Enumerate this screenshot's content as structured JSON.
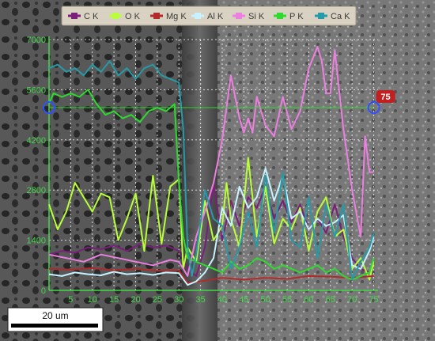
{
  "chart_data": {
    "type": "line",
    "title": "",
    "xlabel": "",
    "ylabel": "",
    "xlim": [
      0,
      76
    ],
    "ylim": [
      0,
      7000
    ],
    "x_ticks": [
      "5",
      "10",
      "15",
      "20",
      "25",
      "30",
      "35",
      "40",
      "45",
      "50",
      "55",
      "60",
      "65",
      "70",
      "75"
    ],
    "y_ticks": [
      "0",
      "1400",
      "2800",
      "4200",
      "5600",
      "7000"
    ],
    "grid": true,
    "legend_position": "top",
    "cursor": {
      "x": 75,
      "y": 5100,
      "label": "75"
    },
    "scale_bar_label": "20 um",
    "series": [
      {
        "name": "C K",
        "color": "#7a1f7a",
        "x": [
          0,
          3,
          6,
          9,
          12,
          15,
          18,
          21,
          24,
          27,
          30,
          32,
          34,
          36,
          38,
          40,
          42,
          44,
          46,
          48,
          50,
          52,
          54,
          56,
          58,
          60,
          62,
          64,
          66,
          68,
          70,
          72,
          74,
          75
        ],
        "y": [
          1000,
          1100,
          1050,
          1200,
          1150,
          1250,
          1100,
          1300,
          1200,
          1250,
          1100,
          600,
          400,
          1200,
          3000,
          1400,
          2500,
          1800,
          2600,
          2300,
          2900,
          2000,
          2500,
          1900,
          2400,
          1700,
          2000,
          1600,
          2400,
          1500,
          900,
          600,
          500,
          800
        ]
      },
      {
        "name": "O K",
        "color": "#b8ff3a",
        "x": [
          0,
          2,
          4,
          6,
          8,
          10,
          12,
          14,
          16,
          18,
          20,
          22,
          24,
          26,
          28,
          30,
          31,
          32,
          34,
          36,
          38,
          40,
          41,
          42,
          44,
          46,
          48,
          50,
          52,
          54,
          56,
          58,
          60,
          62,
          64,
          66,
          68,
          70,
          72,
          74,
          75
        ],
        "y": [
          2400,
          1700,
          2200,
          3000,
          2600,
          2200,
          2700,
          2600,
          1400,
          2000,
          2700,
          1100,
          3200,
          1300,
          2900,
          3100,
          600,
          1200,
          800,
          2500,
          1400,
          1800,
          3000,
          2000,
          1200,
          3700,
          1500,
          2900,
          1300,
          2000,
          1700,
          2300,
          1100,
          2200,
          2600,
          1500,
          1700,
          600,
          900,
          300,
          800
        ]
      },
      {
        "name": "Mg K",
        "color": "#b22a2a",
        "x": [
          0,
          5,
          10,
          15,
          20,
          25,
          30,
          32,
          35,
          40,
          45,
          50,
          55,
          60,
          65,
          70,
          75
        ],
        "y": [
          600,
          580,
          620,
          560,
          600,
          550,
          560,
          200,
          250,
          350,
          300,
          350,
          320,
          400,
          380,
          350,
          400
        ]
      },
      {
        "name": "Al K",
        "color": "#c8f2ff",
        "x": [
          0,
          3,
          6,
          9,
          12,
          15,
          18,
          21,
          24,
          27,
          30,
          32,
          34,
          36,
          38,
          40,
          42,
          44,
          46,
          48,
          50,
          52,
          54,
          56,
          58,
          60,
          62,
          64,
          66,
          68,
          70,
          72,
          74,
          75
        ],
        "y": [
          450,
          400,
          500,
          450,
          420,
          520,
          450,
          480,
          430,
          500,
          480,
          150,
          250,
          500,
          900,
          2300,
          1800,
          2900,
          2300,
          2600,
          3400,
          2500,
          3200,
          2000,
          2200,
          1700,
          2000,
          1800,
          1900,
          2100,
          700,
          600,
          1100,
          1500
        ]
      },
      {
        "name": "Si K",
        "color": "#ec7fe0",
        "x": [
          0,
          4,
          8,
          12,
          16,
          20,
          24,
          28,
          30,
          32,
          34,
          36,
          38,
          40,
          42,
          44,
          45,
          46,
          47,
          48,
          50,
          52,
          54,
          56,
          58,
          60,
          62,
          63,
          64,
          65,
          66,
          68,
          70,
          72,
          73,
          74,
          75
        ],
        "y": [
          1000,
          900,
          800,
          1000,
          900,
          800,
          700,
          850,
          800,
          400,
          1500,
          2200,
          3000,
          4200,
          6000,
          4800,
          4400,
          4800,
          4400,
          5400,
          4600,
          4300,
          5400,
          4500,
          5000,
          6200,
          6800,
          6400,
          5500,
          5500,
          6700,
          4500,
          2800,
          1500,
          4300,
          3300,
          3300
        ]
      },
      {
        "name": "P K",
        "color": "#2fd92f",
        "x": [
          0,
          1,
          3,
          5,
          7,
          9,
          11,
          13,
          15,
          17,
          19,
          21,
          23,
          25,
          27,
          29,
          30,
          31,
          32,
          34,
          36,
          38,
          40,
          42,
          44,
          46,
          48,
          50,
          52,
          54,
          56,
          58,
          60,
          62,
          64,
          66,
          68,
          70,
          72,
          74,
          75
        ],
        "y": [
          5200,
          5500,
          5400,
          5500,
          5400,
          5600,
          5200,
          4900,
          5000,
          4800,
          4900,
          4700,
          5000,
          5100,
          5000,
          5200,
          3000,
          1500,
          900,
          800,
          700,
          600,
          500,
          800,
          600,
          700,
          900,
          800,
          600,
          700,
          600,
          500,
          600,
          700,
          500,
          600,
          400,
          300,
          400,
          500,
          900
        ]
      },
      {
        "name": "Ca K",
        "color": "#279aa8",
        "x": [
          0,
          2,
          4,
          6,
          8,
          10,
          12,
          14,
          16,
          18,
          20,
          22,
          24,
          26,
          28,
          30,
          31,
          32,
          33,
          34,
          36,
          38,
          40,
          42,
          44,
          46,
          48,
          50,
          52,
          54,
          56,
          58,
          60,
          62,
          64,
          66,
          68,
          70,
          72,
          74,
          75
        ],
        "y": [
          6200,
          6300,
          6100,
          6200,
          6000,
          6300,
          6100,
          6400,
          6000,
          6200,
          5900,
          6200,
          6300,
          6000,
          5900,
          5800,
          4500,
          1200,
          400,
          1000,
          2800,
          2000,
          1800,
          600,
          1200,
          2200,
          1200,
          3200,
          1600,
          3300,
          1400,
          1200,
          2600,
          900,
          2400,
          1500,
          2400,
          300,
          800,
          1200,
          1600
        ]
      }
    ]
  }
}
